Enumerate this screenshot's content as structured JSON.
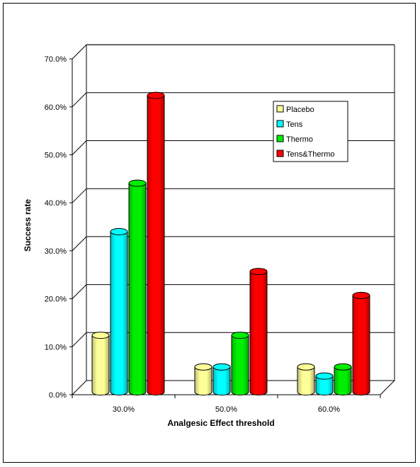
{
  "chart_data": {
    "type": "bar",
    "title": "",
    "xlabel": "Analgesic Effect threshold",
    "ylabel": "Success rate",
    "categories": [
      "30.0%",
      "50.0%",
      "60.0%"
    ],
    "series": [
      {
        "name": "Placebo",
        "color": "#ffff99",
        "values": [
          11.8,
          5.2,
          5.2
        ]
      },
      {
        "name": "Tens",
        "color": "#00ffff",
        "values": [
          33.4,
          5.2,
          3.3
        ]
      },
      {
        "name": "Thermo",
        "color": "#00ee00",
        "values": [
          43.5,
          11.8,
          5.2
        ]
      },
      {
        "name": "Tens&Thermo",
        "color": "#ff0000",
        "values": [
          61.8,
          25.1,
          20.1
        ]
      }
    ],
    "ylim": [
      0,
      70
    ],
    "yticks": [
      "0.0%",
      "10.0%",
      "20.0%",
      "30.0%",
      "40.0%",
      "50.0%",
      "60.0%",
      "70.0%"
    ],
    "grid": true,
    "legend_position": "top-right",
    "style": "3d-cylinder"
  }
}
